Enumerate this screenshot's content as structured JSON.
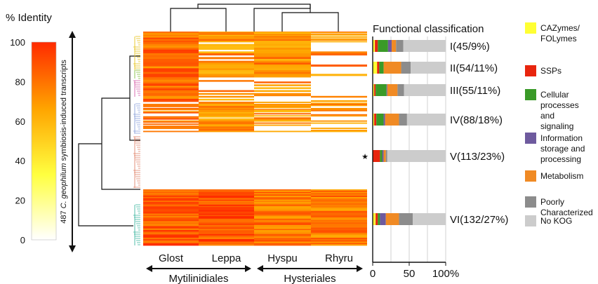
{
  "chart_data": [
    {
      "type": "heatmap",
      "title": "% Identity",
      "colorbar": {
        "ticks": [
          "100",
          "80",
          "60",
          "40",
          "20",
          "0"
        ],
        "min": 0,
        "max": 100,
        "colors": [
          "#ffffff",
          "#ffff40",
          "#ffa500",
          "#ff2a00"
        ]
      },
      "ylabel_italic": "C. geophilum",
      "ylabel_prefix": "487",
      "ylabel_suffix": "symbiosis-induced transcripts",
      "columns": [
        "Glost",
        "Leppa",
        "Hyspu",
        "Rhyru"
      ],
      "groups": [
        {
          "label": "Mytilinidiales",
          "columns": [
            "Glost",
            "Leppa"
          ]
        },
        {
          "label": "Hysteriales",
          "columns": [
            "Hyspu",
            "Rhyru"
          ]
        }
      ],
      "clusters": [
        {
          "label": "I(45/9%)",
          "count": 45,
          "pct": 9,
          "present": [
            1,
            1,
            1,
            0.6
          ]
        },
        {
          "label": "II(54/11%)",
          "count": 54,
          "pct": 11,
          "present": [
            1,
            0.7,
            0.9,
            0.2
          ]
        },
        {
          "label": "III(55/11%)",
          "count": 55,
          "pct": 11,
          "present": [
            1,
            0.2,
            0.4,
            0.1
          ]
        },
        {
          "label": "IV(88/18%)",
          "count": 88,
          "pct": 18,
          "present": [
            0.5,
            0.8,
            0.7,
            0.6
          ]
        },
        {
          "label": "V(113/23%)",
          "count": 113,
          "pct": 23,
          "present": [
            0,
            0,
            0,
            0
          ]
        },
        {
          "label": "VI(132/27%)",
          "count": 132,
          "pct": 27,
          "present": [
            1,
            1,
            1,
            1
          ]
        }
      ]
    },
    {
      "type": "bar",
      "title": "Functional classification",
      "stacked": true,
      "orientation": "horizontal",
      "xticks": [
        "0",
        "50",
        "100%"
      ],
      "xlim": [
        0,
        100
      ],
      "categories": [
        "I(45/9%)",
        "II(54/11%)",
        "III(55/11%)",
        "IV(88/18%)",
        "V(113/23%)",
        "VI(132/27%)"
      ],
      "series": [
        {
          "name": "CAZymes/ FOLymes",
          "color": "#ffff33",
          "values": [
            3,
            6,
            2,
            2,
            0,
            4
          ]
        },
        {
          "name": "SSPs",
          "color": "#e8250e",
          "values": [
            4,
            3,
            2,
            3,
            10,
            3
          ]
        },
        {
          "name": "Cellular processes and signaling",
          "color": "#3a9a28",
          "values": [
            14,
            6,
            15,
            10,
            3,
            3
          ]
        },
        {
          "name": "Information storage and processing",
          "color": "#6e5a9e",
          "values": [
            5,
            0,
            1,
            2,
            2,
            8
          ]
        },
        {
          "name": "Metabolism",
          "color": "#f08a24",
          "values": [
            6,
            24,
            14,
            19,
            3,
            18
          ]
        },
        {
          "name": "Poorly Characterized",
          "color": "#8c8c8c",
          "values": [
            10,
            13,
            9,
            11,
            2,
            19
          ]
        },
        {
          "name": "No KOG",
          "color": "#cccccc",
          "values": [
            58,
            48,
            57,
            53,
            80,
            45
          ]
        }
      ],
      "marker": {
        "category": "V(113/23%)",
        "symbol": "★"
      }
    }
  ]
}
